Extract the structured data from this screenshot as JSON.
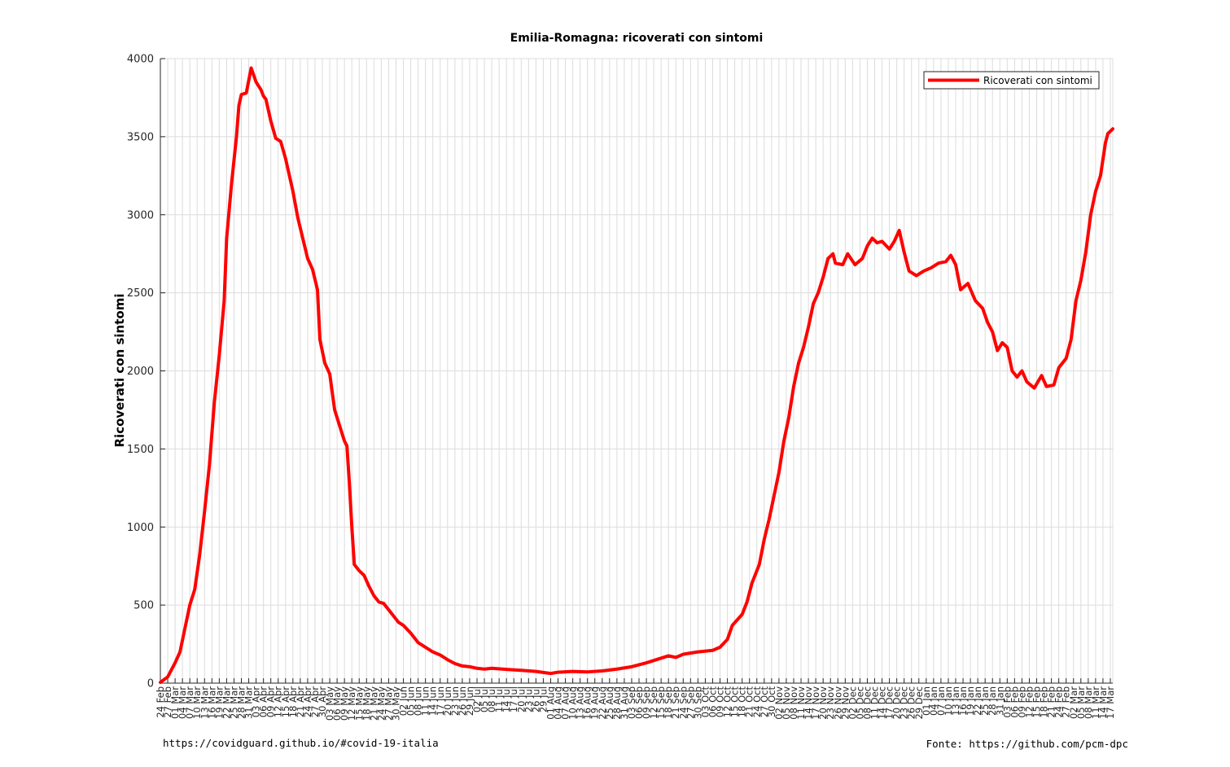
{
  "chart_data": {
    "type": "line",
    "title": "Emilia-Romagna: ricoverati con sintomi",
    "xlabel": "",
    "ylabel": "Ricoverati con sintomi",
    "ylim": [
      0,
      4000
    ],
    "yticks": [
      0,
      500,
      1000,
      1500,
      2000,
      2500,
      3000,
      3500,
      4000
    ],
    "grid": true,
    "legend_position": "top-right",
    "x_start": "2020-02-24",
    "x_end": "2021-03-18",
    "x_ticks": [
      "24 Feb",
      "27 Feb",
      "01 Mar",
      "04 Mar",
      "07 Mar",
      "10 Mar",
      "13 Mar",
      "16 Mar",
      "19 Mar",
      "22 Mar",
      "25 Mar",
      "28 Mar",
      "31 Mar",
      "03 Apr",
      "06 Apr",
      "09 Apr",
      "12 Apr",
      "15 Apr",
      "18 Apr",
      "21 Apr",
      "24 Apr",
      "27 Apr",
      "30 Apr",
      "03 May",
      "06 May",
      "09 May",
      "12 May",
      "15 May",
      "18 May",
      "21 May",
      "24 May",
      "27 May",
      "30 May",
      "02 Jun",
      "05 Jun",
      "08 Jun",
      "11 Jun",
      "14 Jun",
      "17 Jun",
      "20 Jun",
      "23 Jun",
      "26 Jun",
      "29 Jun",
      "02 Jul",
      "05 Jul",
      "08 Jul",
      "11 Jul",
      "14 Jul",
      "17 Jul",
      "20 Jul",
      "23 Jul",
      "26 Jul",
      "29 Jul",
      "01 Aug",
      "04 Aug",
      "07 Aug",
      "10 Aug",
      "13 Aug",
      "16 Aug",
      "19 Aug",
      "22 Aug",
      "25 Aug",
      "28 Aug",
      "31 Aug",
      "03 Sep",
      "06 Sep",
      "09 Sep",
      "12 Sep",
      "15 Sep",
      "18 Sep",
      "21 Sep",
      "24 Sep",
      "27 Sep",
      "30 Sep",
      "03 Oct",
      "06 Oct",
      "09 Oct",
      "12 Oct",
      "15 Oct",
      "18 Oct",
      "21 Oct",
      "24 Oct",
      "27 Oct",
      "30 Oct",
      "02 Nov",
      "05 Nov",
      "08 Nov",
      "11 Nov",
      "14 Nov",
      "17 Nov",
      "20 Nov",
      "23 Nov",
      "26 Nov",
      "29 Nov",
      "02 Dec",
      "05 Dec",
      "08 Dec",
      "11 Dec",
      "14 Dec",
      "17 Dec",
      "20 Dec",
      "23 Dec",
      "26 Dec",
      "29 Dec",
      "01 Jan",
      "04 Jan",
      "07 Jan",
      "10 Jan",
      "13 Jan",
      "16 Jan",
      "19 Jan",
      "22 Jan",
      "25 Jan",
      "28 Jan",
      "31 Jan",
      "03 Feb",
      "06 Feb",
      "09 Feb",
      "12 Feb",
      "15 Feb",
      "18 Feb",
      "21 Feb",
      "24 Feb",
      "27 Feb",
      "02 Mar",
      "05 Mar",
      "08 Mar",
      "11 Mar",
      "14 Mar",
      "17 Mar"
    ],
    "series": [
      {
        "name": "Ricoverati con sintomi",
        "color": "#ff0000",
        "points": [
          [
            "2020-02-24",
            5
          ],
          [
            "2020-02-27",
            40
          ],
          [
            "2020-03-01",
            130
          ],
          [
            "2020-03-03",
            200
          ],
          [
            "2020-03-05",
            350
          ],
          [
            "2020-03-07",
            500
          ],
          [
            "2020-03-09",
            600
          ],
          [
            "2020-03-11",
            820
          ],
          [
            "2020-03-13",
            1100
          ],
          [
            "2020-03-15",
            1400
          ],
          [
            "2020-03-17",
            1800
          ],
          [
            "2020-03-19",
            2100
          ],
          [
            "2020-03-21",
            2450
          ],
          [
            "2020-03-22",
            2850
          ],
          [
            "2020-03-24",
            3200
          ],
          [
            "2020-03-26",
            3500
          ],
          [
            "2020-03-27",
            3700
          ],
          [
            "2020-03-28",
            3770
          ],
          [
            "2020-03-30",
            3780
          ],
          [
            "2020-04-01",
            3940
          ],
          [
            "2020-04-03",
            3850
          ],
          [
            "2020-04-05",
            3800
          ],
          [
            "2020-04-06",
            3760
          ],
          [
            "2020-04-07",
            3740
          ],
          [
            "2020-04-09",
            3600
          ],
          [
            "2020-04-11",
            3490
          ],
          [
            "2020-04-13",
            3470
          ],
          [
            "2020-04-15",
            3360
          ],
          [
            "2020-04-18",
            3150
          ],
          [
            "2020-04-20",
            2980
          ],
          [
            "2020-04-22",
            2850
          ],
          [
            "2020-04-24",
            2720
          ],
          [
            "2020-04-26",
            2650
          ],
          [
            "2020-04-28",
            2520
          ],
          [
            "2020-04-29",
            2200
          ],
          [
            "2020-05-01",
            2050
          ],
          [
            "2020-05-03",
            1980
          ],
          [
            "2020-05-05",
            1750
          ],
          [
            "2020-05-07",
            1650
          ],
          [
            "2020-05-09",
            1550
          ],
          [
            "2020-05-10",
            1520
          ],
          [
            "2020-05-11",
            1280
          ],
          [
            "2020-05-12",
            1000
          ],
          [
            "2020-05-13",
            760
          ],
          [
            "2020-05-15",
            720
          ],
          [
            "2020-05-17",
            690
          ],
          [
            "2020-05-19",
            620
          ],
          [
            "2020-05-21",
            560
          ],
          [
            "2020-05-23",
            520
          ],
          [
            "2020-05-25",
            510
          ],
          [
            "2020-05-27",
            470
          ],
          [
            "2020-05-29",
            430
          ],
          [
            "2020-05-31",
            390
          ],
          [
            "2020-06-02",
            370
          ],
          [
            "2020-06-05",
            320
          ],
          [
            "2020-06-08",
            260
          ],
          [
            "2020-06-11",
            230
          ],
          [
            "2020-06-14",
            200
          ],
          [
            "2020-06-17",
            180
          ],
          [
            "2020-06-20",
            150
          ],
          [
            "2020-06-23",
            125
          ],
          [
            "2020-06-26",
            110
          ],
          [
            "2020-06-29",
            105
          ],
          [
            "2020-07-02",
            95
          ],
          [
            "2020-07-05",
            90
          ],
          [
            "2020-07-08",
            95
          ],
          [
            "2020-07-14",
            88
          ],
          [
            "2020-07-20",
            82
          ],
          [
            "2020-07-26",
            75
          ],
          [
            "2020-08-01",
            62
          ],
          [
            "2020-08-04",
            70
          ],
          [
            "2020-08-10",
            75
          ],
          [
            "2020-08-16",
            72
          ],
          [
            "2020-08-22",
            78
          ],
          [
            "2020-08-28",
            90
          ],
          [
            "2020-09-03",
            105
          ],
          [
            "2020-09-09",
            130
          ],
          [
            "2020-09-15",
            160
          ],
          [
            "2020-09-18",
            175
          ],
          [
            "2020-09-21",
            165
          ],
          [
            "2020-09-24",
            185
          ],
          [
            "2020-09-30",
            200
          ],
          [
            "2020-10-06",
            210
          ],
          [
            "2020-10-09",
            230
          ],
          [
            "2020-10-12",
            280
          ],
          [
            "2020-10-14",
            370
          ],
          [
            "2020-10-18",
            440
          ],
          [
            "2020-10-20",
            520
          ],
          [
            "2020-10-22",
            640
          ],
          [
            "2020-10-25",
            760
          ],
          [
            "2020-10-27",
            920
          ],
          [
            "2020-10-29",
            1050
          ],
          [
            "2020-10-31",
            1200
          ],
          [
            "2020-11-02",
            1350
          ],
          [
            "2020-11-04",
            1550
          ],
          [
            "2020-11-06",
            1700
          ],
          [
            "2020-11-08",
            1900
          ],
          [
            "2020-11-10",
            2050
          ],
          [
            "2020-11-12",
            2150
          ],
          [
            "2020-11-14",
            2280
          ],
          [
            "2020-11-16",
            2430
          ],
          [
            "2020-11-18",
            2500
          ],
          [
            "2020-11-20",
            2600
          ],
          [
            "2020-11-22",
            2720
          ],
          [
            "2020-11-24",
            2750
          ],
          [
            "2020-11-25",
            2690
          ],
          [
            "2020-11-28",
            2680
          ],
          [
            "2020-11-30",
            2750
          ],
          [
            "2020-12-03",
            2680
          ],
          [
            "2020-12-06",
            2720
          ],
          [
            "2020-12-08",
            2800
          ],
          [
            "2020-12-10",
            2850
          ],
          [
            "2020-12-12",
            2820
          ],
          [
            "2020-12-14",
            2830
          ],
          [
            "2020-12-17",
            2780
          ],
          [
            "2020-12-19",
            2830
          ],
          [
            "2020-12-21",
            2900
          ],
          [
            "2020-12-23",
            2760
          ],
          [
            "2020-12-25",
            2640
          ],
          [
            "2020-12-28",
            2610
          ],
          [
            "2020-12-31",
            2640
          ],
          [
            "2021-01-03",
            2660
          ],
          [
            "2021-01-06",
            2690
          ],
          [
            "2021-01-09",
            2700
          ],
          [
            "2021-01-11",
            2740
          ],
          [
            "2021-01-13",
            2680
          ],
          [
            "2021-01-15",
            2520
          ],
          [
            "2021-01-18",
            2560
          ],
          [
            "2021-01-21",
            2450
          ],
          [
            "2021-01-24",
            2400
          ],
          [
            "2021-01-26",
            2310
          ],
          [
            "2021-01-28",
            2250
          ],
          [
            "2021-01-30",
            2130
          ],
          [
            "2021-02-01",
            2180
          ],
          [
            "2021-02-03",
            2150
          ],
          [
            "2021-02-05",
            2000
          ],
          [
            "2021-02-07",
            1960
          ],
          [
            "2021-02-09",
            2000
          ],
          [
            "2021-02-11",
            1930
          ],
          [
            "2021-02-14",
            1890
          ],
          [
            "2021-02-17",
            1970
          ],
          [
            "2021-02-19",
            1900
          ],
          [
            "2021-02-22",
            1910
          ],
          [
            "2021-02-24",
            2020
          ],
          [
            "2021-02-27",
            2080
          ],
          [
            "2021-03-01",
            2200
          ],
          [
            "2021-03-03",
            2450
          ],
          [
            "2021-03-05",
            2580
          ],
          [
            "2021-03-07",
            2760
          ],
          [
            "2021-03-09",
            3000
          ],
          [
            "2021-03-11",
            3150
          ],
          [
            "2021-03-13",
            3250
          ],
          [
            "2021-03-15",
            3460
          ],
          [
            "2021-03-16",
            3520
          ],
          [
            "2021-03-18",
            3550
          ]
        ]
      }
    ]
  },
  "footer": {
    "left": "https://covidguard.github.io/#covid-19-italia",
    "right": "Fonte: https://github.com/pcm-dpc"
  }
}
